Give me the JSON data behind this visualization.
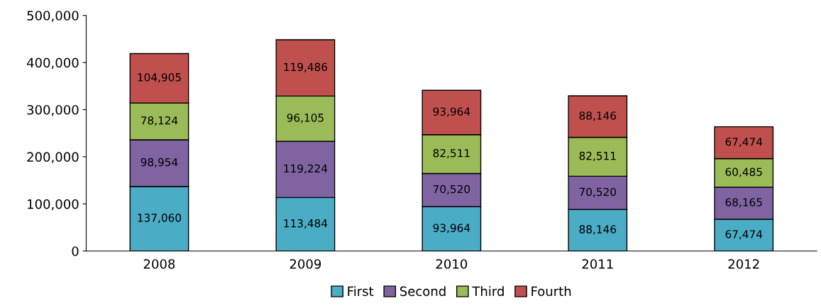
{
  "chart_data": {
    "type": "bar",
    "stacked": true,
    "categories": [
      "2008",
      "2009",
      "2010",
      "2011",
      "2012"
    ],
    "series": [
      {
        "name": "First",
        "color": "#4bacc6",
        "values": [
          137060,
          113484,
          93964,
          88146,
          67474
        ],
        "value_labels": [
          "137,060",
          "113,484",
          "93,964",
          "88,146",
          "67,474"
        ]
      },
      {
        "name": "Second",
        "color": "#8064a2",
        "values": [
          98954,
          119224,
          70520,
          70520,
          68165
        ],
        "value_labels": [
          "98,954",
          "119,224",
          "70,520",
          "70,520",
          "68,165"
        ]
      },
      {
        "name": "Third",
        "color": "#9bbb59",
        "values": [
          78124,
          96105,
          82511,
          82511,
          60485
        ],
        "value_labels": [
          "78,124",
          "96,105",
          "82,511",
          "82,511",
          "60,485"
        ]
      },
      {
        "name": "Fourth",
        "color": "#c0504d",
        "values": [
          104905,
          119486,
          93964,
          88146,
          67474
        ],
        "value_labels": [
          "104,905",
          "119,486",
          "93,964",
          "88,146",
          "67,474"
        ]
      }
    ],
    "ylim": [
      0,
      500000
    ],
    "yticks": [
      {
        "value": 0,
        "label": "0"
      },
      {
        "value": 100000,
        "label": "100,000"
      },
      {
        "value": 200000,
        "label": "200,000"
      },
      {
        "value": 300000,
        "label": "300,000"
      },
      {
        "value": 400000,
        "label": "400,000"
      },
      {
        "value": 500000,
        "label": "500,000"
      }
    ],
    "grid": false,
    "legend": "bottom"
  }
}
